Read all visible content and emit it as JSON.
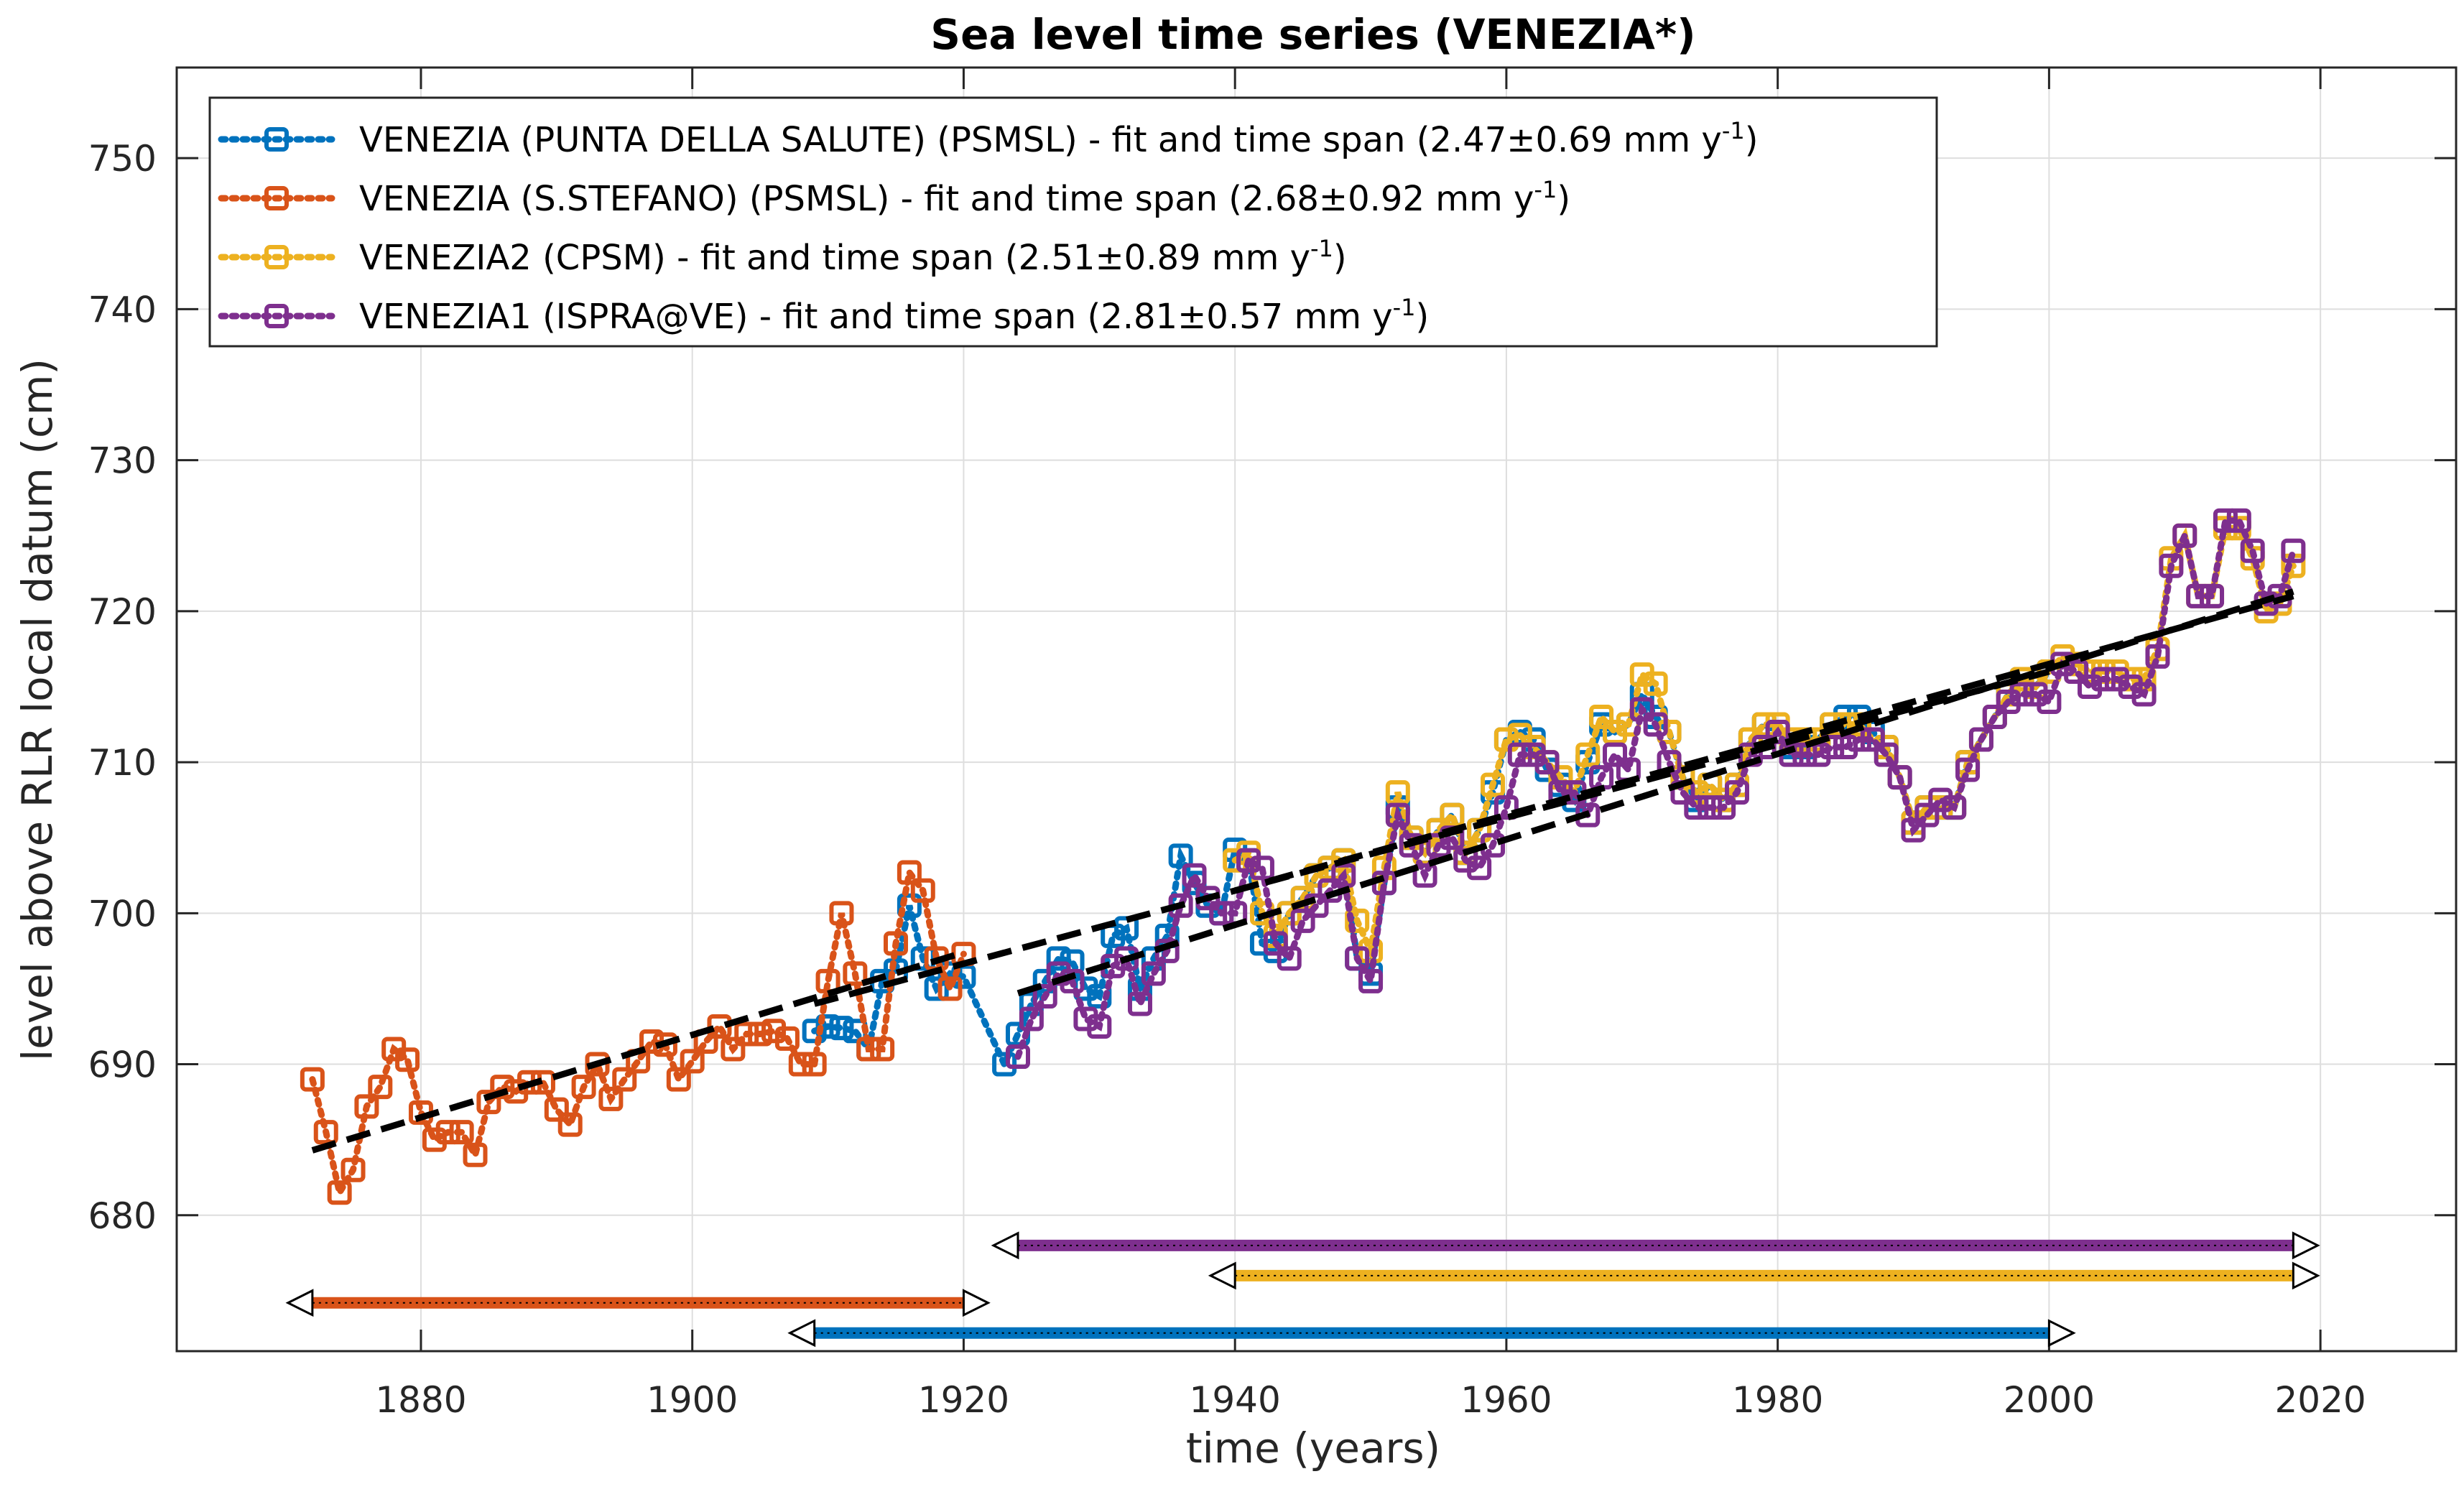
{
  "chart_data": {
    "type": "line",
    "title": "Sea level time series (VENEZIA*)",
    "xlabel": "time (years)",
    "ylabel": "level above RLR local datum (cm)",
    "xlim": [
      1862,
      2030
    ],
    "ylim": [
      671,
      756
    ],
    "xticks": [
      1880,
      1900,
      1920,
      1940,
      1960,
      1980,
      2000,
      2020
    ],
    "yticks": [
      680,
      690,
      700,
      710,
      720,
      730,
      740,
      750
    ],
    "xtick_labels": [
      "1880",
      "1900",
      "1920",
      "1940",
      "1960",
      "1980",
      "2000",
      "2020"
    ],
    "ytick_labels": [
      "680",
      "690",
      "700",
      "710",
      "720",
      "730",
      "740",
      "750"
    ],
    "grid": true,
    "legend_position": "top-left",
    "series": [
      {
        "name": "VENEZIA (PUNTA DELLA SALUTE) (PSMSL)",
        "legend_label": "VENEZIA (PUNTA DELLA SALUTE) (PSMSL) - fit and time span (2.47±0.69 mm y",
        "color": "#0072BD",
        "trend_value": "2.47±0.69",
        "x": [
          1909,
          1910,
          1911,
          1912,
          1913,
          1914,
          1915,
          1916,
          1917,
          1918,
          1919,
          1920,
          1923,
          1924,
          1925,
          1926,
          1927,
          1928,
          1929,
          1930,
          1931,
          1932,
          1933,
          1934,
          1935,
          1936,
          1937,
          1938,
          1939,
          1940,
          1941,
          1942,
          1943,
          1944,
          1945,
          1946,
          1947,
          1948,
          1949,
          1950,
          1951,
          1952,
          1953,
          1954,
          1955,
          1956,
          1957,
          1958,
          1959,
          1960,
          1961,
          1962,
          1963,
          1964,
          1965,
          1966,
          1967,
          1968,
          1969,
          1970,
          1971,
          1972,
          1973,
          1974,
          1975,
          1976,
          1977,
          1978,
          1979,
          1980,
          1981,
          1982,
          1983,
          1984,
          1985,
          1986,
          1987,
          1988,
          1989,
          1990,
          1991,
          1992,
          1993,
          1994,
          1995,
          1996,
          1997,
          1998,
          1999,
          2000
        ],
        "y": [
          692.2,
          692.5,
          692.4,
          692.2,
          691.0,
          695.5,
          696.2,
          700.5,
          697.0,
          695.0,
          696.0,
          695.8,
          690.0,
          692.0,
          694.0,
          695.5,
          697.0,
          696.8,
          695.0,
          694.5,
          698.5,
          699.0,
          695.0,
          697.0,
          698.5,
          703.8,
          702.0,
          700.5,
          700.0,
          704.2,
          703.5,
          698.0,
          697.5,
          700.0,
          701.0,
          702.5,
          703.0,
          703.5,
          697.0,
          696.0,
          702.0,
          707.0,
          705.0,
          704.0,
          705.5,
          706.5,
          704.0,
          705.5,
          708.0,
          711.5,
          712.0,
          711.5,
          709.5,
          708.5,
          707.5,
          710.0,
          712.5,
          712.0,
          712.5,
          714.5,
          713.0,
          712.0,
          709.0,
          707.5,
          708.5,
          707.5,
          708.5,
          711.5,
          712.5,
          712.0,
          711.0,
          711.0,
          711.5,
          712.5,
          713.0,
          713.0,
          712.0,
          711.0,
          709.0,
          706.0,
          707.0,
          707.0,
          707.0,
          710.0,
          711.5,
          713.0,
          714.5,
          715.5,
          715.0,
          716.0
        ]
      },
      {
        "name": "VENEZIA (S.STEFANO) (PSMSL)",
        "legend_label": "VENEZIA (S.STEFANO) (PSMSL) - fit and time span (2.68±0.92 mm y",
        "color": "#D95319",
        "trend_value": "2.68±0.92",
        "x": [
          1872,
          1873,
          1874,
          1875,
          1876,
          1877,
          1878,
          1879,
          1880,
          1881,
          1882,
          1883,
          1884,
          1885,
          1886,
          1887,
          1888,
          1889,
          1890,
          1891,
          1892,
          1893,
          1894,
          1895,
          1896,
          1897,
          1898,
          1899,
          1900,
          1901,
          1902,
          1903,
          1904,
          1905,
          1906,
          1907,
          1908,
          1909,
          1910,
          1911,
          1912,
          1913,
          1914,
          1915,
          1916,
          1917,
          1918,
          1919,
          1920
        ],
        "y": [
          689.0,
          685.5,
          681.5,
          683.0,
          687.2,
          688.5,
          691.0,
          690.3,
          686.8,
          685.0,
          685.5,
          685.5,
          684.0,
          687.5,
          688.5,
          688.2,
          688.8,
          688.8,
          687.0,
          686.0,
          688.5,
          690.0,
          687.7,
          689.0,
          690.2,
          691.5,
          691.3,
          689.0,
          690.2,
          691.5,
          692.5,
          691.0,
          692.0,
          692.0,
          692.2,
          691.7,
          690.0,
          690.0,
          695.5,
          700.0,
          696.0,
          691.0,
          691.0,
          698.0,
          702.7,
          701.5,
          697.0,
          695.0,
          697.3
        ]
      },
      {
        "name": "VENEZIA2 (CPSM)",
        "legend_label": "VENEZIA2 (CPSM) - fit and time span (2.51±0.89 mm y",
        "color": "#EDB120",
        "trend_value": "2.51±0.89",
        "x": [
          1940,
          1941,
          1942,
          1943,
          1944,
          1945,
          1946,
          1947,
          1948,
          1949,
          1950,
          1951,
          1952,
          1953,
          1954,
          1955,
          1956,
          1957,
          1958,
          1959,
          1960,
          1961,
          1962,
          1963,
          1964,
          1965,
          1966,
          1967,
          1968,
          1969,
          1970,
          1971,
          1972,
          1973,
          1974,
          1975,
          1976,
          1977,
          1978,
          1979,
          1980,
          1981,
          1982,
          1983,
          1984,
          1985,
          1986,
          1987,
          1988,
          1989,
          1990,
          1991,
          1992,
          1993,
          1994,
          1995,
          1996,
          1997,
          1998,
          1999,
          2000,
          2001,
          2002,
          2003,
          2004,
          2005,
          2006,
          2007,
          2008,
          2009,
          2010,
          2011,
          2012,
          2013,
          2014,
          2015,
          2016,
          2017,
          2018
        ],
        "y": [
          703.5,
          704.0,
          700.0,
          698.5,
          700.0,
          701.0,
          702.5,
          703.0,
          703.5,
          699.5,
          697.5,
          703.0,
          708.0,
          705.0,
          704.0,
          705.5,
          706.5,
          704.0,
          705.5,
          708.5,
          711.5,
          711.8,
          711.0,
          710.0,
          709.0,
          708.0,
          710.5,
          713.0,
          712.0,
          712.5,
          715.8,
          715.2,
          712.0,
          709.0,
          708.0,
          708.5,
          707.5,
          708.5,
          711.5,
          712.5,
          712.5,
          711.5,
          711.5,
          711.5,
          712.5,
          712.5,
          712.5,
          711.5,
          711.0,
          709.0,
          706.0,
          707.0,
          707.0,
          707.0,
          710.0,
          711.5,
          713.0,
          714.5,
          715.5,
          715.0,
          716.0,
          717.0,
          716.5,
          716.0,
          716.0,
          716.0,
          715.5,
          715.5,
          717.5,
          723.5,
          725.0,
          721.0,
          721.0,
          725.5,
          725.5,
          723.5,
          720.0,
          720.5,
          723.0
        ]
      },
      {
        "name": "VENEZIA1 (ISPRA@VE)",
        "legend_label": "VENEZIA1 (ISPRA@VE) - fit and time span (2.81±0.57 mm y",
        "color": "#7E2F8E",
        "trend_value": "2.81±0.57",
        "x": [
          1924,
          1925,
          1926,
          1927,
          1928,
          1929,
          1930,
          1931,
          1932,
          1933,
          1934,
          1935,
          1936,
          1937,
          1938,
          1939,
          1940,
          1941,
          1942,
          1943,
          1944,
          1945,
          1946,
          1947,
          1948,
          1949,
          1950,
          1951,
          1952,
          1953,
          1954,
          1955,
          1956,
          1957,
          1958,
          1959,
          1960,
          1961,
          1962,
          1963,
          1964,
          1965,
          1966,
          1967,
          1968,
          1969,
          1970,
          1971,
          1972,
          1973,
          1974,
          1975,
          1976,
          1977,
          1978,
          1979,
          1980,
          1981,
          1982,
          1983,
          1984,
          1985,
          1986,
          1987,
          1988,
          1989,
          1990,
          1991,
          1992,
          1993,
          1994,
          1995,
          1996,
          1997,
          1998,
          1999,
          2000,
          2001,
          2002,
          2003,
          2004,
          2005,
          2006,
          2007,
          2008,
          2009,
          2010,
          2011,
          2012,
          2013,
          2014,
          2015,
          2016,
          2017,
          2018
        ],
        "y": [
          690.5,
          693.0,
          694.5,
          696.0,
          695.5,
          693.0,
          692.5,
          696.5,
          697.0,
          694.0,
          696.0,
          697.5,
          700.5,
          702.5,
          701.0,
          700.0,
          700.0,
          703.5,
          703.0,
          698.0,
          697.0,
          699.5,
          700.5,
          701.5,
          702.5,
          697.0,
          695.5,
          702.0,
          706.5,
          704.5,
          702.5,
          704.5,
          705.0,
          703.5,
          703.0,
          704.5,
          707.0,
          710.5,
          710.5,
          710.0,
          708.0,
          708.0,
          706.5,
          709.0,
          710.5,
          709.5,
          713.5,
          712.5,
          710.0,
          708.0,
          707.0,
          707.0,
          707.0,
          708.0,
          710.5,
          711.0,
          712.0,
          710.5,
          710.5,
          710.5,
          711.0,
          711.0,
          711.5,
          711.5,
          710.5,
          709.0,
          705.5,
          706.5,
          707.5,
          707.0,
          709.5,
          711.5,
          713.0,
          714.0,
          714.5,
          714.5,
          714.0,
          716.5,
          716.0,
          715.0,
          715.5,
          715.5,
          715.0,
          714.5,
          717.0,
          723.0,
          725.0,
          721.0,
          721.0,
          726.0,
          726.0,
          724.0,
          720.5,
          721.0,
          724.0
        ]
      }
    ],
    "trend_lines": [
      {
        "series": "VENEZIA (PUNTA DELLA SALUTE) (PSMSL)",
        "x": [
          1909,
          2000
        ],
        "y": [
          694.0,
          716.0
        ]
      },
      {
        "series": "VENEZIA (S.STEFANO) (PSMSL)",
        "x": [
          1872,
          1920
        ],
        "y": [
          684.3,
          697.4
        ]
      },
      {
        "series": "VENEZIA2 (CPSM)",
        "x": [
          1940,
          2018
        ],
        "y": [
          701.5,
          721.0
        ]
      },
      {
        "series": "VENEZIA1 (ISPRA@VE)",
        "x": [
          1924,
          2018
        ],
        "y": [
          694.7,
          721.3
        ]
      }
    ],
    "time_spans": [
      {
        "series": "VENEZIA1 (ISPRA@VE)",
        "start": 1924,
        "end": 2018,
        "y": 678.0
      },
      {
        "series": "VENEZIA2 (CPSM)",
        "start": 1940,
        "end": 2018,
        "y": 676.0
      },
      {
        "series": "VENEZIA (S.STEFANO) (PSMSL)",
        "start": 1872,
        "end": 1920,
        "y": 674.2
      },
      {
        "series": "VENEZIA (PUNTA DELLA SALUTE) (PSMSL)",
        "start": 1909,
        "end": 2000,
        "y": 672.2
      }
    ],
    "legend_unit_exponent": "-1",
    "legend_unit_close": ")"
  }
}
